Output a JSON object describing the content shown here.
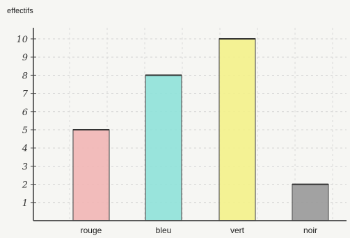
{
  "chart_data": {
    "type": "bar",
    "title": "",
    "ylabel": "effectifs",
    "xlabel": "",
    "categories": [
      "rouge",
      "bleu",
      "vert",
      "noir"
    ],
    "values": [
      5,
      8,
      10,
      2
    ],
    "colors": [
      "#f2b6b6",
      "#8fe3da",
      "#f4f28a",
      "#9a9a9a"
    ],
    "ylim": [
      0,
      10
    ],
    "yticks": [
      1,
      2,
      3,
      4,
      5,
      6,
      7,
      8,
      9,
      10
    ],
    "ytick_labels": [
      "1",
      "2",
      "3",
      "4",
      "5",
      "6",
      "7",
      "8",
      "9",
      "10"
    ],
    "grid": true
  }
}
